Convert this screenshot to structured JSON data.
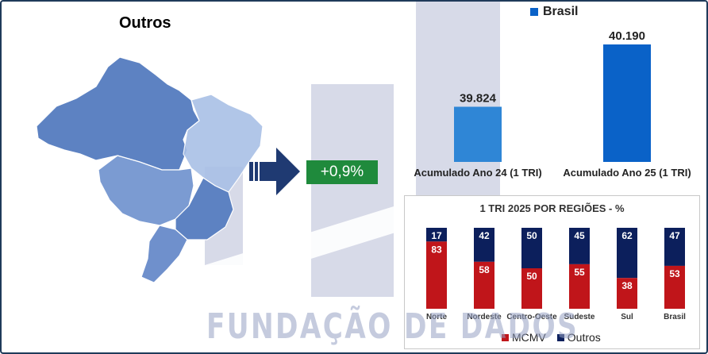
{
  "map": {
    "title": "Outros"
  },
  "growth": {
    "label": "+0,9%"
  },
  "annual": {
    "legend": "Brasil",
    "chart_data": {
      "type": "bar",
      "categories": [
        "Acumulado Ano 24 (1 TRI)",
        "Acumulado Ano 25 (1 TRI)"
      ],
      "series": [
        {
          "name": "Brasil",
          "values": [
            39824,
            40190
          ]
        }
      ],
      "data_labels": [
        "39.824",
        "40.190"
      ]
    }
  },
  "regions": {
    "title": "1 TRI 2025 POR REGIÕES - %",
    "legend": {
      "mcmv": "MCMV",
      "outros": "Outros"
    },
    "colors": {
      "mcmv": "#c0151a",
      "outros": "#0c1f5c"
    },
    "chart_data": {
      "type": "bar",
      "stacked": true,
      "categories": [
        "Norte",
        "Nordeste",
        "Centro-Oeste",
        "Sudeste",
        "Sul",
        "Brasil"
      ],
      "series": [
        {
          "name": "MCMV",
          "values": [
            83,
            58,
            50,
            55,
            38,
            53
          ]
        },
        {
          "name": "Outros",
          "values": [
            17,
            42,
            50,
            45,
            62,
            47
          ]
        }
      ]
    }
  },
  "watermark": "FUNDAÇÃO DE DADOS"
}
